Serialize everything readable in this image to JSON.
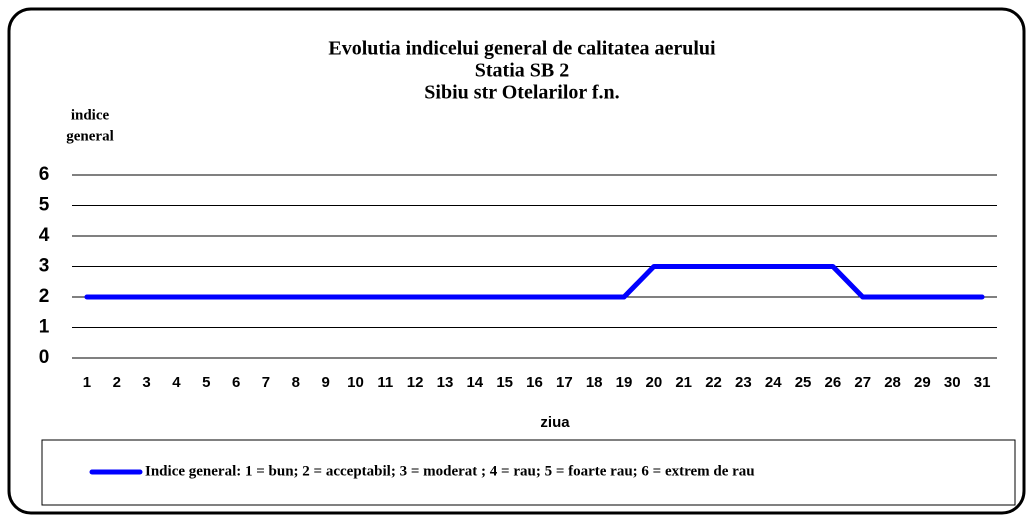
{
  "chart_data": {
    "type": "line",
    "title": [
      "Evolutia indicelui  general de calitatea aerului",
      "Statia SB 2",
      "Sibiu str Otelarilor f.n."
    ],
    "ylabel": [
      "indice",
      "general"
    ],
    "xlabel": "ziua",
    "categories": [
      1,
      2,
      3,
      4,
      5,
      6,
      7,
      8,
      9,
      10,
      11,
      12,
      13,
      14,
      15,
      16,
      17,
      18,
      19,
      20,
      21,
      22,
      23,
      24,
      25,
      26,
      27,
      28,
      29,
      30,
      31
    ],
    "series": [
      {
        "name": "Indice general: 1 = bun; 2 = acceptabil; 3 = moderat ; 4 = rau; 5 = foarte rau; 6 = extrem de rau",
        "color": "#0000ff",
        "values": [
          2,
          2,
          2,
          2,
          2,
          2,
          2,
          2,
          2,
          2,
          2,
          2,
          2,
          2,
          2,
          2,
          2,
          2,
          2,
          3,
          3,
          3,
          3,
          3,
          3,
          3,
          2,
          2,
          2,
          2,
          2
        ]
      }
    ],
    "ylim": [
      0,
      6
    ],
    "yticks": [
      0,
      1,
      2,
      3,
      4,
      5,
      6
    ],
    "grid": true
  }
}
